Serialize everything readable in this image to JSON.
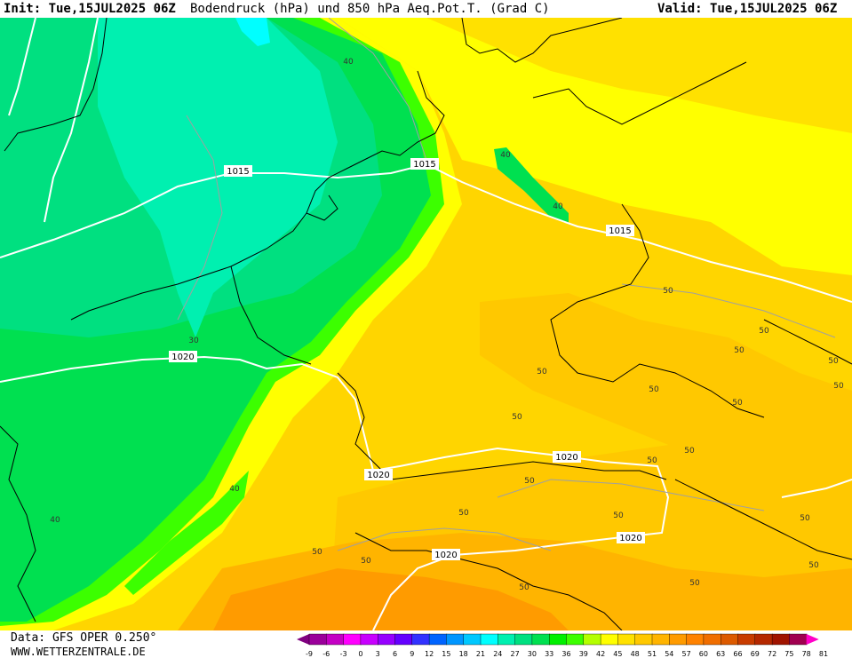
{
  "header": {
    "init": "Init: Tue,15JUL2025 06Z",
    "title": "Bodendruck (hPa) und 850 hPa Aeq.Pot.T. (Grad C)",
    "valid": "Valid: Tue,15JUL2025 06Z"
  },
  "footer": {
    "data_source": "Data: GFS OPER 0.250°",
    "website": "WWW.WETTERZENTRALE.DE"
  },
  "legend": {
    "ticks": [
      "-9",
      "-6",
      "-3",
      "0",
      "3",
      "6",
      "9",
      "12",
      "15",
      "18",
      "21",
      "24",
      "27",
      "30",
      "33",
      "36",
      "39",
      "42",
      "45",
      "48",
      "51",
      "54",
      "57",
      "60",
      "63",
      "66",
      "69",
      "72",
      "75",
      "78",
      "81"
    ],
    "colors": [
      "#800080",
      "#9a009a",
      "#c400c4",
      "#ff00ff",
      "#c800ff",
      "#9600ff",
      "#6400ff",
      "#3232ff",
      "#0064ff",
      "#0096ff",
      "#00c8ff",
      "#00ffff",
      "#00f0b0",
      "#00e080",
      "#00e050",
      "#00f000",
      "#3cff00",
      "#b4ff00",
      "#ffff00",
      "#ffe100",
      "#ffc800",
      "#ffb400",
      "#ff9b00",
      "#ff8200",
      "#f06e00",
      "#dc5a00",
      "#c83c00",
      "#b42800",
      "#a01400",
      "#a00050",
      "#ff00c8"
    ]
  },
  "isobars": {
    "labels": [
      "1015",
      "1015",
      "1015",
      "1020",
      "1020",
      "1020",
      "1020",
      "1020"
    ]
  },
  "theta_e_labels": [
    "40",
    "40",
    "40",
    "40",
    "40",
    "30",
    "50",
    "50",
    "50",
    "50",
    "50",
    "50",
    "50",
    "50",
    "50",
    "50",
    "50",
    "50",
    "50",
    "50",
    "50",
    "50",
    "50",
    "50",
    "50",
    "50"
  ]
}
